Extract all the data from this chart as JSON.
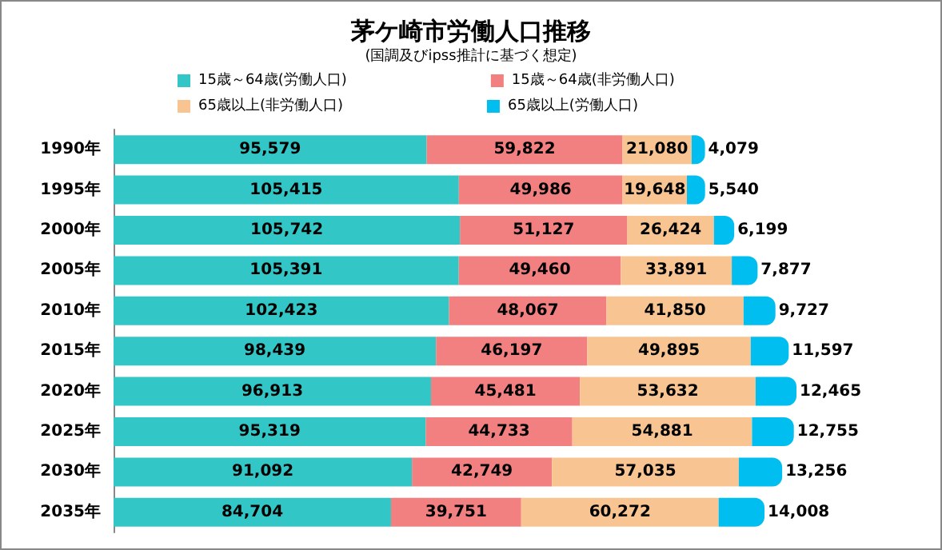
{
  "chart_data": {
    "type": "bar",
    "title": "茅ケ崎市労働人口推移",
    "subtitle": "(国調及びipss推計に基づく想定)",
    "orientation": "horizontal",
    "stacked": true,
    "legend": "top",
    "tick_labels": "y",
    "categories": [
      "1990年",
      "1995年",
      "2000年",
      "2005年",
      "2010年",
      "2015年",
      "2020年",
      "2025年",
      "2030年",
      "2035年"
    ],
    "series": [
      {
        "name": "15歳～64歳(労働人口)",
        "color": "#33c6c6",
        "values": [
          95579,
          105415,
          105742,
          105391,
          102423,
          98439,
          96913,
          95319,
          91092,
          84704
        ],
        "value_labels": [
          "95,579",
          "105,415",
          "105,742",
          "105,391",
          "102,423",
          "98,439",
          "96,913",
          "95,319",
          "91,092",
          "84,704"
        ]
      },
      {
        "name": "15歳～64歳(非労働人口)",
        "color": "#f28080",
        "values": [
          59822,
          49986,
          51127,
          49460,
          48067,
          46197,
          45481,
          44733,
          42749,
          39751
        ],
        "value_labels": [
          "59,822",
          "49,986",
          "51,127",
          "49,460",
          "48,067",
          "46,197",
          "45,481",
          "44,733",
          "42,749",
          "39,751"
        ]
      },
      {
        "name": "65歳以上(非労働人口)",
        "color": "#f8c592",
        "values": [
          21080,
          19648,
          26424,
          33891,
          41850,
          49895,
          53632,
          54881,
          57035,
          60272
        ],
        "value_labels": [
          "21,080",
          "19,648",
          "26,424",
          "33,891",
          "41,850",
          "49,895",
          "53,632",
          "54,881",
          "57,035",
          "60,272"
        ]
      },
      {
        "name": "65歳以上(労働人口)",
        "color": "#00bef0",
        "values": [
          4079,
          5540,
          6199,
          7877,
          9727,
          11597,
          12465,
          12755,
          13256,
          14008
        ],
        "value_labels": [
          "4,079",
          "5,540",
          "6,199",
          "7,877",
          "9,727",
          "11,597",
          "12,465",
          "12,755",
          "13,256",
          "14,008"
        ]
      }
    ]
  }
}
